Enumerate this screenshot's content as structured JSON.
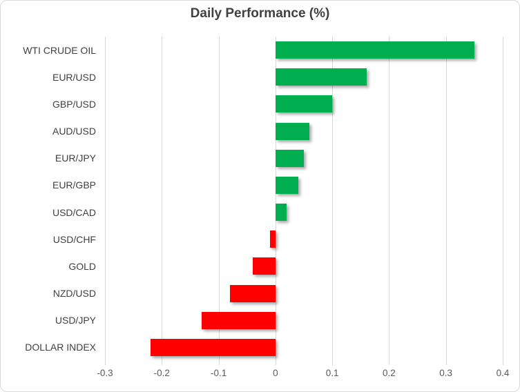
{
  "chart_data": {
    "type": "bar",
    "orientation": "horizontal",
    "title": "Daily Performance (%)",
    "categories": [
      "WTI CRUDE OIL",
      "EUR/USD",
      "GBP/USD",
      "AUD/USD",
      "EUR/JPY",
      "EUR/GBP",
      "USD/CAD",
      "USD/CHF",
      "GOLD",
      "NZD/USD",
      "USD/JPY",
      "DOLLAR INDEX"
    ],
    "values": [
      0.35,
      0.16,
      0.1,
      0.06,
      0.05,
      0.04,
      0.02,
      -0.01,
      -0.04,
      -0.08,
      -0.13,
      -0.22
    ],
    "xlabel": "",
    "ylabel": "",
    "xlim": [
      -0.3,
      0.4
    ],
    "x_ticks": [
      -0.3,
      -0.2,
      -0.1,
      0,
      0.1,
      0.2,
      0.3,
      0.4
    ],
    "x_tick_labels": [
      "-0.3",
      "-0.2",
      "-0.1",
      "0",
      "0.1",
      "0.2",
      "0.3",
      "0.4"
    ],
    "grid": "vertical-gridlines-on",
    "legend": "none",
    "colors": {
      "positive_bar": "#00AE50",
      "negative_bar": "#FF0000",
      "gridline": "#D9D9D9",
      "border": "#D9D9D9",
      "title_text": "#404040",
      "category_text": "#3F3F3F",
      "tick_text": "#595959",
      "background": "#FFFFFF"
    }
  }
}
